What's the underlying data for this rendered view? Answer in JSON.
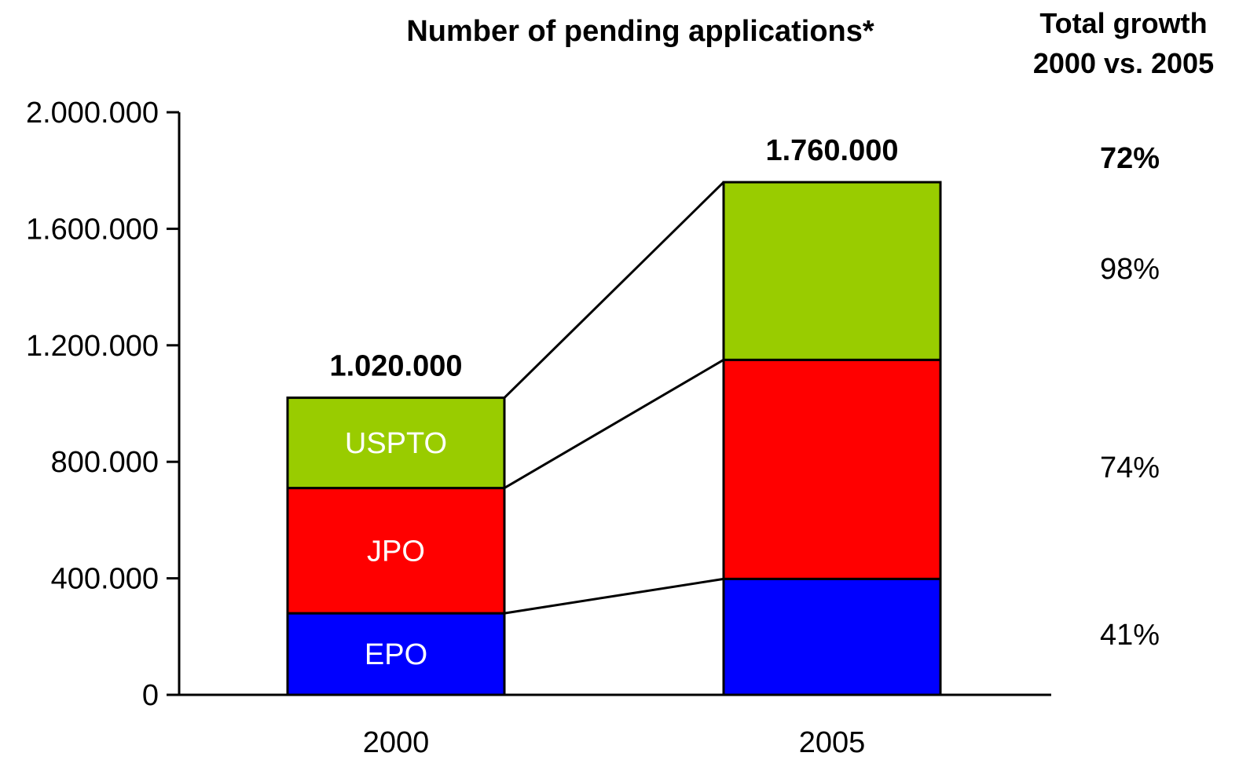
{
  "chart_data": {
    "type": "bar",
    "stacked": true,
    "title": "Number of pending applications*",
    "categories": [
      "2000",
      "2005"
    ],
    "series": [
      {
        "name": "EPO",
        "color": "#0000FF",
        "values": [
          280000,
          398000
        ]
      },
      {
        "name": "JPO",
        "color": "#FF0000",
        "values": [
          430000,
          752000
        ]
      },
      {
        "name": "USPTO",
        "color": "#99CC00",
        "values": [
          310000,
          610000
        ]
      }
    ],
    "totals": [
      "1.020.000",
      "1.760.000"
    ],
    "segment_labels": [
      "EPO",
      "JPO",
      "USPTO"
    ],
    "ylim": [
      0,
      2000000
    ],
    "yticks": [
      0,
      400000,
      800000,
      1200000,
      1600000,
      2000000
    ],
    "ytick_labels": [
      "0",
      "400.000",
      "800.000",
      "1.200.000",
      "1.600.000",
      "2.000.000"
    ],
    "xlabel": "",
    "ylabel": "",
    "grid": false,
    "legend": "none",
    "growth": {
      "title_lines": [
        "Total growth",
        "2000 vs. 2005"
      ],
      "total": "72%",
      "by_series": {
        "USPTO": "98%",
        "JPO": "74%",
        "EPO": "41%"
      }
    }
  }
}
